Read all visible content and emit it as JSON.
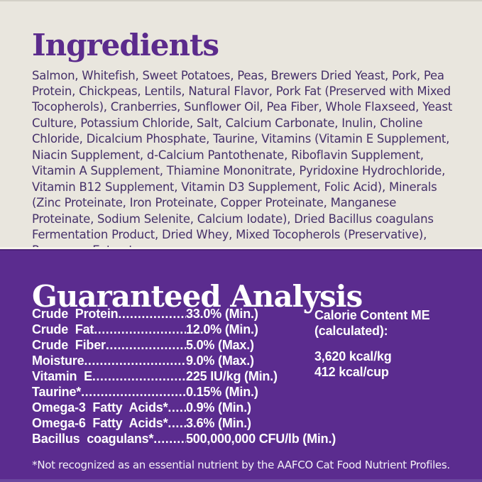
{
  "ingredients": {
    "title": "Ingredients",
    "text": "Salmon, Whitefish, Sweet Potatoes, Peas, Brewers Dried Yeast, Pork, Pea Protein, Chickpeas, Lentils, Natural Flavor, Pork Fat (Preserved with Mixed Tocopherols), Cranberries, Sunflower Oil, Pea Fiber, Whole Flaxseed, Yeast Culture, Potassium Chloride, Salt, Calcium Carbonate, Inulin, Choline Chloride, Dicalcium Phosphate, Taurine, Vitamins (Vitamin E Supplement, Niacin Supplement, d-Calcium Pantothenate, Riboflavin Supplement, Vitamin A Supplement, Thiamine Mononitrate, Pyridoxine Hydrochloride, Vitamin B12 Supplement, Vitamin D3 Supplement, Folic Acid), Minerals (Zinc Proteinate, Iron Proteinate, Copper Proteinate, Manganese Proteinate, Sodium Selenite, Calcium Iodate), Dried Bacillus coagulans Fermentation Product, Dried Whey, Mixed Tocopherols (Preservative), Rosemary Extract."
  },
  "analysis": {
    "title": "Guaranteed Analysis",
    "rows": [
      {
        "label": "Crude Protein",
        "dots": "......................",
        "value": "33.0% (Min.)"
      },
      {
        "label": "Crude Fat",
        "dots": ".............................",
        "value": "12.0% (Min.)"
      },
      {
        "label": "Crude Fiber",
        "dots": "..........................",
        "value": "5.0% (Max.)"
      },
      {
        "label": "Moisture",
        "dots": "...............................",
        "value": "9.0% (Max.)"
      },
      {
        "label": "Vitamin E",
        "dots": "............................",
        "value": "225 IU/kg (Min.)"
      },
      {
        "label": "Taurine*",
        "dots": "...............................",
        "value": "0.15% (Min.)"
      },
      {
        "label": "Omega-3 Fatty Acids*",
        "dots": "..........",
        "value": "0.9% (Min.)"
      },
      {
        "label": "Omega-6 Fatty Acids*",
        "dots": "..........",
        "value": "3.6% (Min.)"
      },
      {
        "label": "Bacillus coagulans*",
        "dots": ".............",
        "value": "500,000,000 CFU/lb (Min.)"
      }
    ],
    "calorie": {
      "line1": "Calorie Content ME",
      "line2": "(calculated):",
      "kcal_per_kg": "3,620 kcal/kg",
      "kcal_per_cup": "412 kcal/cup"
    },
    "footnote": "*Not recognized as an essential nutrient by the AAFCO Cat Food Nutrient Profiles."
  },
  "colors": {
    "cream_background": "#e9e6de",
    "purple_background": "#5b2c8f",
    "heading_purple": "#5b2b8c",
    "body_text_purple": "#453069",
    "white_text": "#ffffff"
  }
}
